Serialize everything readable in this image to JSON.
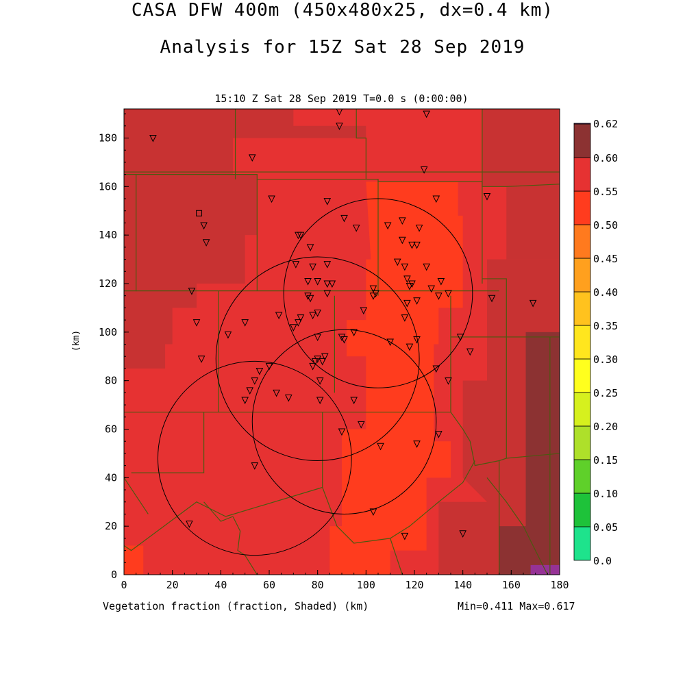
{
  "title_line1": "CASA DFW 400m (450x480x25, dx=0.4 km)",
  "title_line2": "Analysis for 15Z Sat 28 Sep 2019",
  "subtitle": "15:10 Z Sat 28 Sep 2019    T=0.0 s (0:00:00)",
  "footer_left": "Vegetation fraction (fraction, Shaded)  (km)",
  "footer_right": "Min=0.411 Max=0.617",
  "y_axis_label": "(km)",
  "x_ticks": [
    "0",
    "20",
    "40",
    "60",
    "80",
    "100",
    "120",
    "140",
    "160",
    "180"
  ],
  "y_ticks": [
    "0",
    "20",
    "40",
    "60",
    "80",
    "100",
    "120",
    "140",
    "160",
    "180"
  ],
  "colorbar": {
    "labels": [
      "0.0",
      "0.05",
      "0.10",
      "0.15",
      "0.20",
      "0.25",
      "0.30",
      "0.35",
      "0.40",
      "0.45",
      "0.50",
      "0.55",
      "0.60",
      "0.62"
    ],
    "colors": [
      "#1ee38c",
      "#1ec23a",
      "#5fd02a",
      "#aee02a",
      "#d6f01e",
      "#ffff1e",
      "#ffe61e",
      "#ffc21e",
      "#ffa01e",
      "#ff7a1e",
      "#ff3c1e",
      "#e63232",
      "#c83232",
      "#8c3232",
      "#963296"
    ]
  },
  "field_colors": {
    "c045": "#ff3c1e",
    "c050": "#e63232",
    "c055": "#c83232",
    "c060": "#8c3232",
    "c062": "#963296",
    "border": "#4b5a10"
  },
  "radar_rings": [
    {
      "x": 105,
      "y": 116,
      "r": 39
    },
    {
      "x": 80,
      "y": 89,
      "r": 42
    },
    {
      "x": 91,
      "y": 63,
      "r": 38
    },
    {
      "x": 54,
      "y": 48,
      "r": 40
    }
  ],
  "stations": [
    [
      12,
      180
    ],
    [
      53,
      172
    ],
    [
      89,
      191
    ],
    [
      89,
      185
    ],
    [
      125,
      190
    ],
    [
      124,
      167
    ],
    [
      61,
      155
    ],
    [
      84,
      154
    ],
    [
      129,
      155
    ],
    [
      150,
      156
    ],
    [
      33,
      144
    ],
    [
      34,
      137
    ],
    [
      72,
      140
    ],
    [
      73,
      140
    ],
    [
      77,
      135
    ],
    [
      91,
      147
    ],
    [
      96,
      143
    ],
    [
      109,
      144
    ],
    [
      115,
      146
    ],
    [
      122,
      143
    ],
    [
      115,
      138
    ],
    [
      119,
      136
    ],
    [
      121,
      136
    ],
    [
      71,
      128
    ],
    [
      78,
      127
    ],
    [
      84,
      128
    ],
    [
      113,
      129
    ],
    [
      116,
      127
    ],
    [
      125,
      127
    ],
    [
      76,
      121
    ],
    [
      80,
      121
    ],
    [
      84,
      120
    ],
    [
      86,
      120
    ],
    [
      117,
      122
    ],
    [
      119,
      120
    ],
    [
      118,
      119
    ],
    [
      127,
      118
    ],
    [
      131,
      121
    ],
    [
      134,
      116
    ],
    [
      130,
      115
    ],
    [
      76,
      115
    ],
    [
      77,
      114
    ],
    [
      84,
      116
    ],
    [
      103,
      118
    ],
    [
      104,
      116
    ],
    [
      103,
      115
    ],
    [
      80,
      108
    ],
    [
      78,
      107
    ],
    [
      73,
      106
    ],
    [
      72,
      104
    ],
    [
      70,
      102
    ],
    [
      64,
      107
    ],
    [
      50,
      104
    ],
    [
      43,
      99
    ],
    [
      80,
      98
    ],
    [
      90,
      98
    ],
    [
      91,
      97
    ],
    [
      95,
      100
    ],
    [
      99,
      109
    ],
    [
      121,
      113
    ],
    [
      117,
      112
    ],
    [
      116,
      106
    ],
    [
      152,
      114
    ],
    [
      169,
      112
    ],
    [
      139,
      98
    ],
    [
      143,
      92
    ],
    [
      110,
      96
    ],
    [
      118,
      94
    ],
    [
      121,
      97
    ],
    [
      28,
      117
    ],
    [
      30,
      104
    ],
    [
      32,
      89
    ],
    [
      60,
      86
    ],
    [
      56,
      84
    ],
    [
      54,
      80
    ],
    [
      52,
      76
    ],
    [
      50,
      72
    ],
    [
      63,
      75
    ],
    [
      68,
      73
    ],
    [
      81,
      80
    ],
    [
      79,
      88
    ],
    [
      80,
      89
    ],
    [
      82,
      88
    ],
    [
      78,
      86
    ],
    [
      83,
      90
    ],
    [
      81,
      72
    ],
    [
      129,
      85
    ],
    [
      134,
      80
    ],
    [
      95,
      72
    ],
    [
      90,
      59
    ],
    [
      98,
      62
    ],
    [
      130,
      58
    ],
    [
      121,
      54
    ],
    [
      106,
      53
    ],
    [
      54,
      45
    ],
    [
      27,
      21
    ],
    [
      103,
      26
    ],
    [
      116,
      16
    ],
    [
      140,
      17
    ]
  ],
  "square_marker": {
    "x": 31,
    "y": 149
  }
}
